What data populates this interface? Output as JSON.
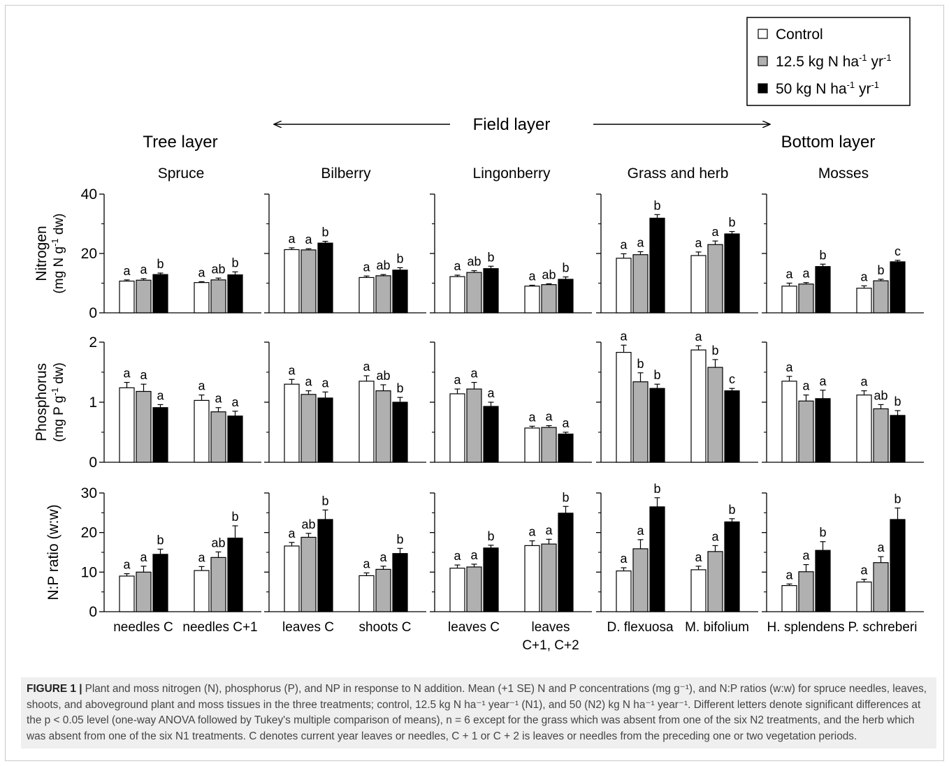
{
  "legend": {
    "items": [
      {
        "label": "Control",
        "color": "#ffffff"
      },
      {
        "label": "12.5 kg N ha",
        "sup1": "-1",
        "mid": " yr",
        "sup2": "-1",
        "color": "#b0b0b0"
      },
      {
        "label": "50 kg N ha",
        "sup1": "-1",
        "mid": " yr",
        "sup2": "-1",
        "color": "#000000"
      }
    ]
  },
  "layers": {
    "tree": "Tree layer",
    "field": "Field layer",
    "bottom": "Bottom  layer"
  },
  "colors": {
    "control": "#ffffff",
    "n1": "#b0b0b0",
    "n2": "#000000"
  },
  "chart_data": {
    "type": "bar",
    "groups": [
      "Spruce",
      "Bilberry",
      "Lingonberry",
      "Grass and herb",
      "Mosses"
    ],
    "series": [
      "Control",
      "12.5 kg N ha-1 yr-1",
      "50 kg N ha-1 yr-1"
    ],
    "categories": [
      [
        "needles C",
        "needles C+1"
      ],
      [
        "leaves C",
        "shoots C"
      ],
      [
        "leaves C",
        "leaves|C+1, C+2"
      ],
      [
        "D. flexuosa",
        "M. bifolium"
      ],
      [
        "H. splendens",
        "P. schreberi"
      ]
    ],
    "rows": [
      {
        "key": "nitrogen",
        "ylabel": "Nitrogen",
        "yunit": "(mg N g",
        "yunit_sup": "-1",
        "yunit_end": " dw)",
        "ylim": [
          0,
          40
        ],
        "yticks": [
          0,
          20,
          40
        ],
        "yticks_minor": [
          10,
          30
        ],
        "values": [
          [
            [
              10.7,
              11.0,
              12.9
            ],
            [
              10.2,
              11.1,
              12.8
            ]
          ],
          [
            [
              21.3,
              21.2,
              23.5
            ],
            [
              11.9,
              12.5,
              14.4
            ]
          ],
          [
            [
              12.2,
              13.6,
              14.9
            ],
            [
              9.0,
              9.5,
              11.3
            ]
          ],
          [
            [
              18.4,
              19.6,
              31.9
            ],
            [
              19.3,
              23.0,
              26.6
            ]
          ],
          [
            [
              9.0,
              9.7,
              15.6
            ],
            [
              8.3,
              10.8,
              17.2
            ]
          ]
        ],
        "errors": [
          [
            [
              0.4,
              0.5,
              0.5
            ],
            [
              0.3,
              0.6,
              1.0
            ]
          ],
          [
            [
              0.6,
              0.4,
              0.6
            ],
            [
              0.5,
              0.4,
              0.8
            ]
          ],
          [
            [
              0.5,
              0.6,
              0.8
            ],
            [
              0.3,
              0.3,
              0.8
            ]
          ],
          [
            [
              1.5,
              1.0,
              1.2
            ],
            [
              1.2,
              1.2,
              0.8
            ]
          ],
          [
            [
              1.0,
              0.5,
              0.8
            ],
            [
              0.8,
              0.5,
              0.5
            ]
          ]
        ],
        "letters": [
          [
            [
              "a",
              "a",
              "b"
            ],
            [
              "a",
              "ab",
              "b"
            ]
          ],
          [
            [
              "a",
              "a",
              "b"
            ],
            [
              "a",
              "ab",
              "b"
            ]
          ],
          [
            [
              "a",
              "ab",
              "b"
            ],
            [
              "a",
              "ab",
              "b"
            ]
          ],
          [
            [
              "a",
              "a",
              "b"
            ],
            [
              "a",
              "a",
              "b"
            ]
          ],
          [
            [
              "a",
              "a",
              "b"
            ],
            [
              "a",
              "b",
              "c"
            ]
          ]
        ]
      },
      {
        "key": "phosphorus",
        "ylabel": "Phosphorus",
        "yunit": "(mg P g",
        "yunit_sup": "-1",
        "yunit_end": " dw)",
        "ylim": [
          0,
          2
        ],
        "yticks": [
          0,
          1,
          2
        ],
        "yticks_minor": [
          0.5,
          1.5
        ],
        "values": [
          [
            [
              1.24,
              1.18,
              0.91
            ],
            [
              1.03,
              0.84,
              0.77
            ]
          ],
          [
            [
              1.3,
              1.13,
              1.07
            ],
            [
              1.35,
              1.19,
              1.0
            ]
          ],
          [
            [
              1.14,
              1.22,
              0.93
            ],
            [
              0.57,
              0.58,
              0.47
            ]
          ],
          [
            [
              1.83,
              1.34,
              1.23
            ],
            [
              1.87,
              1.58,
              1.19
            ]
          ],
          [
            [
              1.35,
              1.02,
              1.06
            ],
            [
              1.12,
              0.89,
              0.78
            ]
          ]
        ],
        "errors": [
          [
            [
              0.09,
              0.12,
              0.05
            ],
            [
              0.09,
              0.07,
              0.08
            ]
          ],
          [
            [
              0.08,
              0.06,
              0.1
            ],
            [
              0.09,
              0.1,
              0.08
            ]
          ],
          [
            [
              0.08,
              0.11,
              0.07
            ],
            [
              0.03,
              0.03,
              0.03
            ]
          ],
          [
            [
              0.12,
              0.15,
              0.07
            ],
            [
              0.07,
              0.13,
              0.04
            ]
          ],
          [
            [
              0.08,
              0.1,
              0.14
            ],
            [
              0.07,
              0.07,
              0.08
            ]
          ]
        ],
        "letters": [
          [
            [
              "a",
              "a",
              "a"
            ],
            [
              "a",
              "a",
              "a"
            ]
          ],
          [
            [
              "a",
              "a",
              "a"
            ],
            [
              "a",
              "ab",
              "b"
            ]
          ],
          [
            [
              "a",
              "a",
              "a"
            ],
            [
              "a",
              "a",
              "a"
            ]
          ],
          [
            [
              "a",
              "b",
              "b"
            ],
            [
              "a",
              "b",
              "c"
            ]
          ],
          [
            [
              "a",
              "a",
              "a"
            ],
            [
              "a",
              "ab",
              "b"
            ]
          ]
        ]
      },
      {
        "key": "np",
        "ylabel": "N:P ratio (w:w)",
        "yunit": "",
        "yunit_sup": "",
        "yunit_end": "",
        "ylim": [
          0,
          30
        ],
        "yticks": [
          0,
          10,
          20,
          30
        ],
        "yticks_minor": [
          5,
          15,
          25
        ],
        "values": [
          [
            [
              9.0,
              10.0,
              14.5
            ],
            [
              10.4,
              13.7,
              18.6
            ]
          ],
          [
            [
              16.6,
              18.8,
              23.3
            ],
            [
              9.1,
              10.7,
              14.7
            ]
          ],
          [
            [
              11.0,
              11.3,
              16.1
            ],
            [
              16.7,
              17.1,
              24.9
            ]
          ],
          [
            [
              10.3,
              15.9,
              26.5
            ],
            [
              10.6,
              15.2,
              22.7
            ]
          ],
          [
            [
              6.6,
              10.1,
              15.5
            ],
            [
              7.5,
              12.4,
              23.3
            ]
          ]
        ],
        "errors": [
          [
            [
              0.6,
              1.5,
              1.3
            ],
            [
              1.0,
              1.4,
              3.1
            ]
          ],
          [
            [
              0.9,
              1.0,
              2.4
            ],
            [
              0.7,
              0.8,
              1.3
            ]
          ],
          [
            [
              0.8,
              0.7,
              0.7
            ],
            [
              1.2,
              1.2,
              1.7
            ]
          ],
          [
            [
              0.8,
              2.3,
              2.3
            ],
            [
              0.9,
              1.5,
              0.8
            ]
          ],
          [
            [
              0.4,
              1.8,
              2.2
            ],
            [
              0.7,
              1.5,
              2.9
            ]
          ]
        ],
        "letters": [
          [
            [
              "a",
              "a",
              "b"
            ],
            [
              "a",
              "ab",
              "b"
            ]
          ],
          [
            [
              "a",
              "ab",
              "b"
            ],
            [
              "a",
              "a",
              "b"
            ]
          ],
          [
            [
              "a",
              "a",
              "b"
            ],
            [
              "a",
              "a",
              "b"
            ]
          ],
          [
            [
              "a",
              "a",
              "b"
            ],
            [
              "a",
              "a",
              "b"
            ]
          ],
          [
            [
              "a",
              "a",
              "b"
            ],
            [
              "a",
              "a",
              "b"
            ]
          ]
        ]
      }
    ]
  },
  "caption": {
    "label": "FIGURE 1 |",
    "text": "Plant and moss nitrogen (N), phosphorus (P), and NP in response to N addition. Mean (+1 SE) N and P concentrations (mg g⁻¹), and N:P ratios (w:w) for spruce needles, leaves, shoots, and aboveground plant and moss tissues in the three treatments; control, 12.5 kg N ha⁻¹ year⁻¹ (N1), and 50 (N2) kg N ha⁻¹ year⁻¹. Different letters denote significant differences at the p < 0.05 level (one-way ANOVA followed by Tukey's multiple comparison of means), n = 6 except for the grass which was absent from one of the six N2 treatments, and the herb which was absent from one of the six N1 treatments. C denotes current year leaves or needles, C + 1 or C + 2 is leaves or needles from the preceding one or two vegetation periods."
  }
}
